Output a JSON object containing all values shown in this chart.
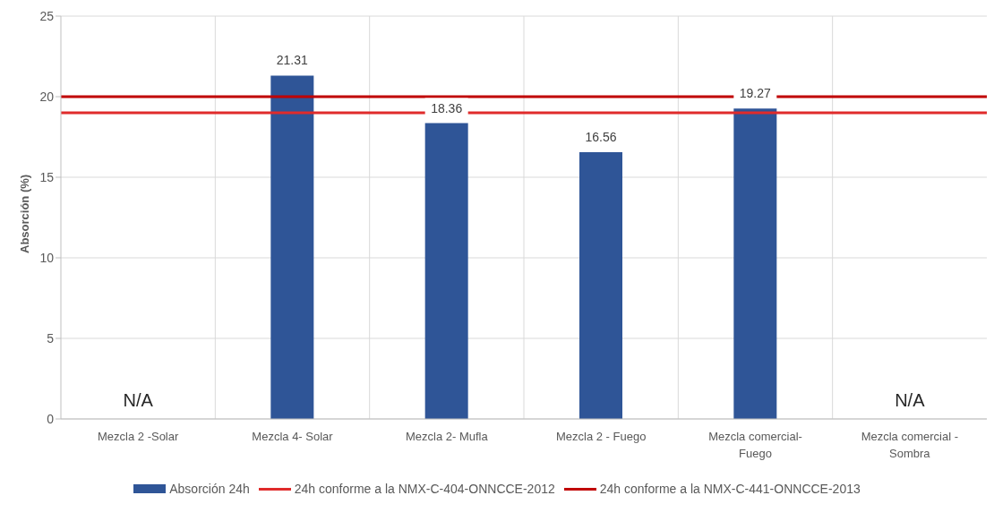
{
  "chart_data": {
    "type": "bar",
    "ylabel": "Absorción (%)",
    "categories": [
      "Mezcla 2 -Solar",
      "Mezcla 4- Solar",
      "Mezcla 2- Mufla",
      "Mezcla 2 - Fuego",
      "Mezcla comercial- Fuego",
      "Mezcla comercial - Sombra"
    ],
    "series": [
      {
        "name": "Absorción 24h",
        "color": "#2f5597",
        "values": [
          null,
          21.31,
          18.36,
          16.56,
          19.27,
          null
        ]
      }
    ],
    "ylim": [
      0,
      25
    ],
    "yticks": [
      0,
      5,
      10,
      15,
      20,
      25
    ],
    "grid": true,
    "data_labels": true,
    "legend": "bottom",
    "ref_lines": [
      {
        "axis": "y",
        "value": 19,
        "label": "24h conforme a la NMX-C-404-ONNCCE-2012",
        "color": "#e02b2b"
      },
      {
        "axis": "y",
        "value": 20,
        "label": "24h conforme a la NMX-C-441-ONNCCE-2013",
        "color": "#c00000"
      }
    ],
    "annotations": [
      "N/A",
      "N/A"
    ]
  }
}
